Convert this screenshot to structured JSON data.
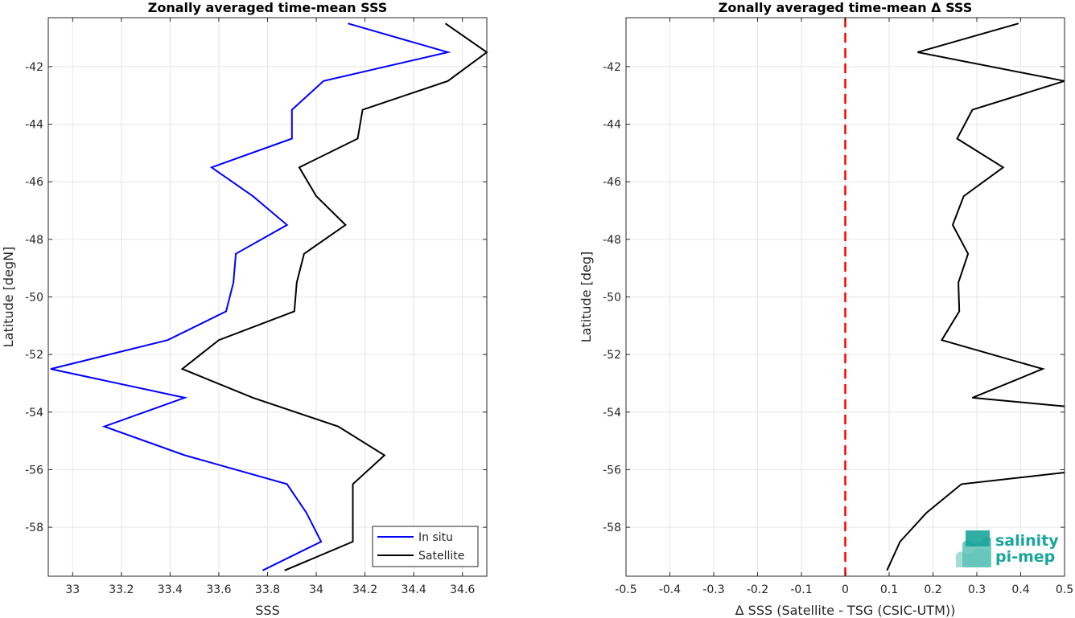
{
  "chart_data": [
    {
      "type": "line",
      "title": "Zonally averaged time-mean SSS",
      "xlabel": "SSS",
      "ylabel": "Latitude [degN]",
      "xlim": [
        32.9,
        34.7
      ],
      "ylim": [
        -59.7,
        -40.3
      ],
      "xticks": [
        33,
        33.2,
        33.4,
        33.6,
        33.8,
        34,
        34.2,
        34.4,
        34.6
      ],
      "xtick_labels": [
        "33",
        "33.2",
        "33.4",
        "33.6",
        "33.8",
        "34",
        "34.2",
        "34.4",
        "34.6"
      ],
      "yticks": [
        -42,
        -44,
        -46,
        -48,
        -50,
        -52,
        -54,
        -56,
        -58
      ],
      "ytick_labels": [
        "-42",
        "-44",
        "-46",
        "-48",
        "-50",
        "-52",
        "-54",
        "-56",
        "-58"
      ],
      "grid": true,
      "legend_position": "bottom-right",
      "series": [
        {
          "name": "In situ",
          "color": "#0000ff",
          "points": [
            [
              34.13,
              -40.5
            ],
            [
              34.54,
              -41.5
            ],
            [
              34.03,
              -42.5
            ],
            [
              33.9,
              -43.5
            ],
            [
              33.9,
              -44.5
            ],
            [
              33.57,
              -45.5
            ],
            [
              33.74,
              -46.5
            ],
            [
              33.88,
              -47.5
            ],
            [
              33.67,
              -48.5
            ],
            [
              33.66,
              -49.5
            ],
            [
              33.63,
              -50.5
            ],
            [
              33.39,
              -51.5
            ],
            [
              32.91,
              -52.5
            ],
            [
              33.46,
              -53.5
            ],
            [
              33.13,
              -54.5
            ],
            [
              33.46,
              -55.5
            ],
            [
              33.88,
              -56.5
            ],
            [
              33.96,
              -57.5
            ],
            [
              34.02,
              -58.5
            ],
            [
              33.78,
              -59.5
            ]
          ]
        },
        {
          "name": "Satellite",
          "color": "#000000",
          "points": [
            [
              34.53,
              -40.5
            ],
            [
              34.7,
              -41.5
            ],
            [
              34.54,
              -42.5
            ],
            [
              34.19,
              -43.5
            ],
            [
              34.17,
              -44.5
            ],
            [
              33.93,
              -45.5
            ],
            [
              34.0,
              -46.5
            ],
            [
              34.12,
              -47.5
            ],
            [
              33.95,
              -48.5
            ],
            [
              33.92,
              -49.5
            ],
            [
              33.91,
              -50.5
            ],
            [
              33.6,
              -51.5
            ],
            [
              33.45,
              -52.5
            ],
            [
              33.74,
              -53.5
            ],
            [
              34.09,
              -54.5
            ],
            [
              34.28,
              -55.5
            ],
            [
              34.15,
              -56.5
            ],
            [
              34.15,
              -57.5
            ],
            [
              34.15,
              -58.5
            ],
            [
              33.87,
              -59.5
            ]
          ]
        }
      ]
    },
    {
      "type": "line",
      "title": "Zonally averaged time-mean Δ SSS",
      "xlabel": "Δ SSS (Satellite - TSG (CSIC-UTM))",
      "ylabel": "Latitude [deg]",
      "xlim": [
        -0.5,
        0.5
      ],
      "ylim": [
        -59.7,
        -40.3
      ],
      "xticks": [
        -0.5,
        -0.4,
        -0.3,
        -0.2,
        -0.1,
        0,
        0.1,
        0.2,
        0.3,
        0.4,
        0.5
      ],
      "xtick_labels": [
        "-0.5",
        "-0.4",
        "-0.3",
        "-0.2",
        "-0.1",
        "0",
        "0.1",
        "0.2",
        "0.3",
        "0.4",
        "0.5"
      ],
      "yticks": [
        -42,
        -44,
        -46,
        -48,
        -50,
        -52,
        -54,
        -56,
        -58
      ],
      "ytick_labels": [
        "-42",
        "-44",
        "-46",
        "-48",
        "-50",
        "-52",
        "-54",
        "-56",
        "-58"
      ],
      "grid": true,
      "reference_line": {
        "x": 0,
        "color": "#ff0000",
        "style": "dashed"
      },
      "series": [
        {
          "color": "#000000",
          "segments": [
            [
              [
                0.395,
                -40.5
              ],
              [
                0.165,
                -41.5
              ],
              [
                0.5,
                -42.5
              ],
              [
                0.29,
                -43.5
              ],
              [
                0.255,
                -44.5
              ],
              [
                0.36,
                -45.5
              ],
              [
                0.27,
                -46.5
              ],
              [
                0.245,
                -47.5
              ],
              [
                0.28,
                -48.5
              ],
              [
                0.258,
                -49.5
              ],
              [
                0.26,
                -50.5
              ],
              [
                0.22,
                -51.5
              ],
              [
                0.45,
                -52.5
              ],
              [
                0.29,
                -53.5
              ],
              [
                0.5,
                -53.8
              ]
            ],
            [
              [
                0.5,
                -56.1
              ],
              [
                0.265,
                -56.5
              ],
              [
                0.185,
                -57.5
              ],
              [
                0.125,
                -58.5
              ],
              [
                0.095,
                -59.5
              ]
            ]
          ]
        }
      ]
    }
  ],
  "legend": {
    "entries": [
      "In situ",
      "Satellite"
    ]
  },
  "logo": {
    "line1": "salinity",
    "line2": "pi-mep"
  }
}
